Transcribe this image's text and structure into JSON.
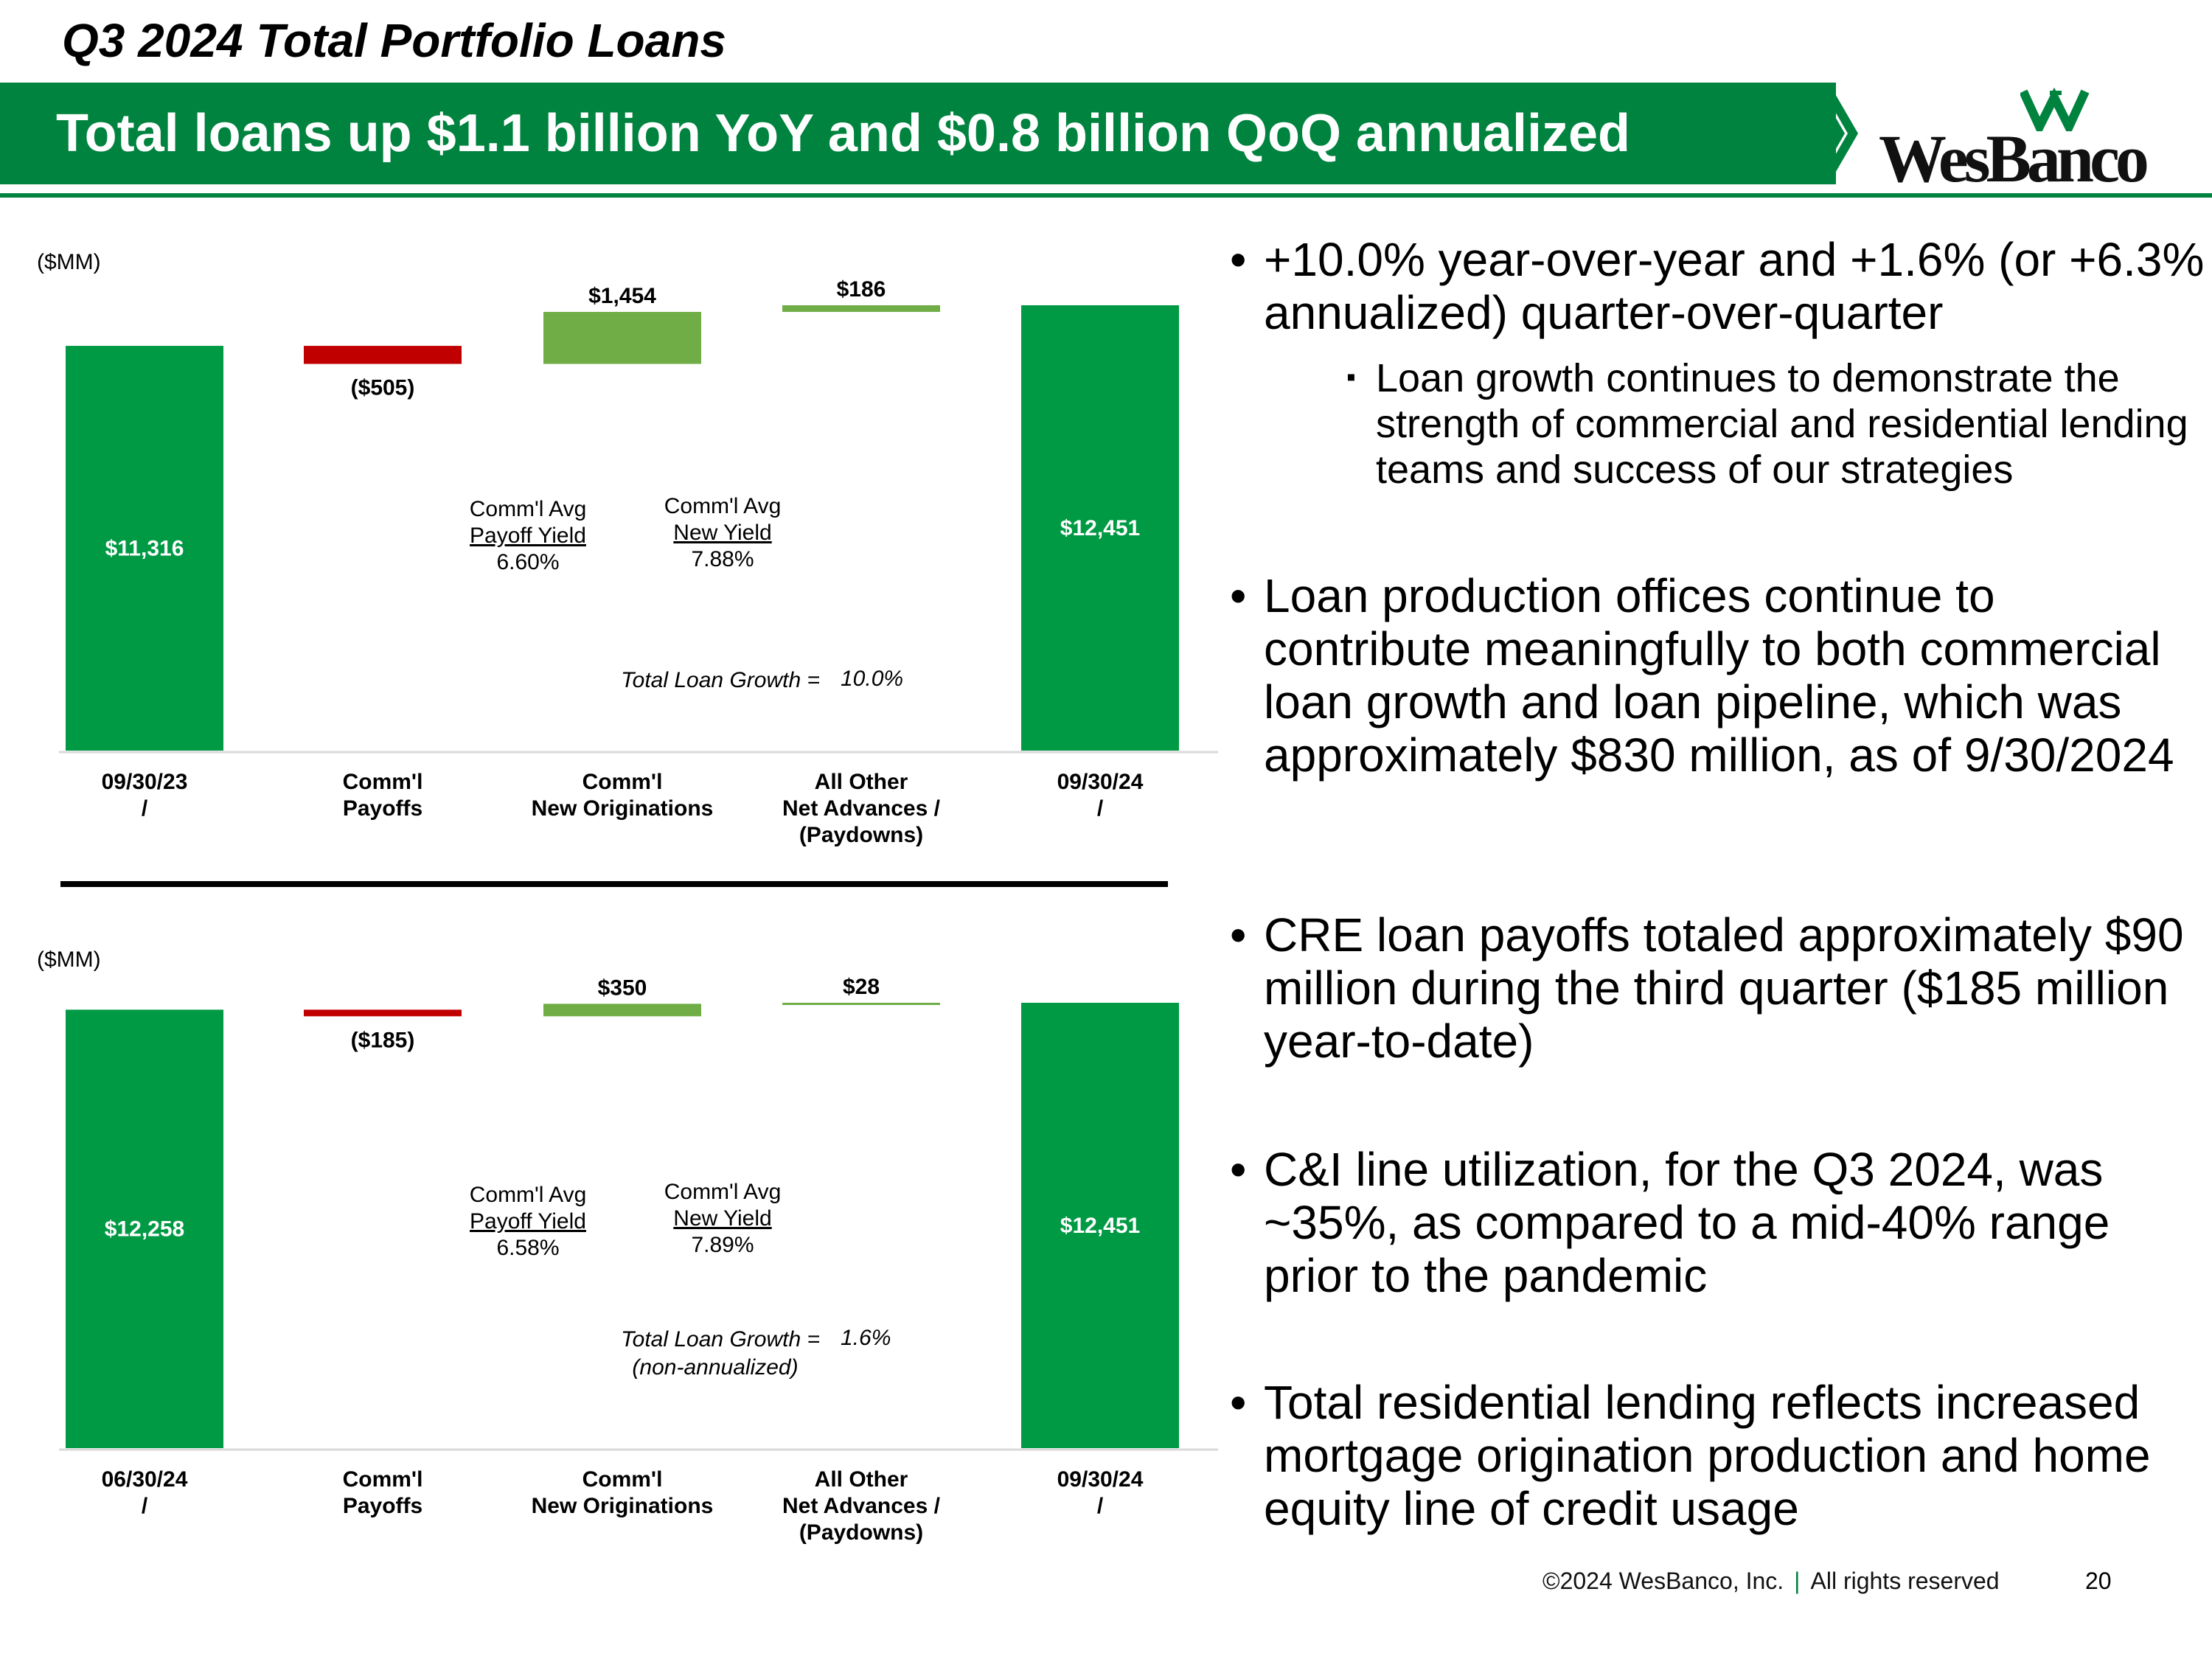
{
  "header": {
    "title": "Q3 2024 Total Portfolio Loans",
    "banner": "Total loans up $1.1 billion YoY and $0.8 billion QoQ annualized",
    "logo": "WesBanco",
    "brand_color": "#00833f"
  },
  "chart_data": [
    {
      "type": "waterfall",
      "unit_label": "($MM)",
      "categories": [
        "09/30/23",
        "Comm'l Payoffs",
        "Comm'l New Originations",
        "All Other Net Advances / (Paydowns)",
        "09/30/24"
      ],
      "values": [
        11316,
        -505,
        1454,
        186,
        12451
      ],
      "value_labels": [
        "$11,316",
        "($505)",
        "$1,454",
        "$186",
        "$12,451"
      ],
      "kinds": [
        "total",
        "decrease",
        "increase",
        "increase",
        "total"
      ],
      "annotations": {
        "payoff_yield_title": "Comm'l Avg",
        "payoff_yield_name": "Payoff Yield",
        "payoff_yield_value": "6.60%",
        "new_yield_title": "Comm'l Avg",
        "new_yield_name": "New Yield",
        "new_yield_value": "7.88%",
        "growth_label": "Total Loan Growth =",
        "growth_value": "10.0%",
        "growth_note": ""
      },
      "colors": {
        "total": "#009a44",
        "decrease": "#c00000",
        "increase": "#70ad47"
      }
    },
    {
      "type": "waterfall",
      "unit_label": "($MM)",
      "categories": [
        "06/30/24",
        "Comm'l Payoffs",
        "Comm'l New Originations",
        "All Other Net Advances / (Paydowns)",
        "09/30/24"
      ],
      "values": [
        12258,
        -185,
        350,
        28,
        12451
      ],
      "value_labels": [
        "$12,258",
        "($185)",
        "$350",
        "$28",
        "$12,451"
      ],
      "kinds": [
        "total",
        "decrease",
        "increase",
        "increase",
        "total"
      ],
      "annotations": {
        "payoff_yield_title": "Comm'l Avg",
        "payoff_yield_name": "Payoff Yield",
        "payoff_yield_value": "6.58%",
        "new_yield_title": "Comm'l Avg",
        "new_yield_name": "New Yield",
        "new_yield_value": "7.89%",
        "growth_label": "Total Loan Growth =",
        "growth_value": "1.6%",
        "growth_note": "(non-annualized)"
      },
      "colors": {
        "total": "#009a44",
        "decrease": "#c00000",
        "increase": "#70ad47"
      }
    }
  ],
  "bullets": [
    {
      "text": "+10.0% year-over-year and +1.6% (or +6.3% annualized) quarter-over-quarter",
      "sub": "Loan growth continues to demonstrate the strength of commercial and residential lending teams and success of our strategies"
    },
    {
      "text": "Loan production offices continue to contribute meaningfully to both commercial loan growth and loan pipeline, which was approximately $830 million, as of 9/30/2024"
    },
    {
      "text": "CRE loan payoffs totaled approximately $90 million during the third quarter ($185 million year-to-date)"
    },
    {
      "text": "C&I line utilization, for the Q3 2024, was ~35%, as compared to a mid-40% range prior to the pandemic"
    },
    {
      "text": "Total residential lending reflects increased mortgage origination production and home equity line of credit usage"
    }
  ],
  "footer": {
    "copyright": "©2024 WesBanco, Inc.",
    "separator": "|",
    "rights": "All rights reserved",
    "page": "20"
  }
}
